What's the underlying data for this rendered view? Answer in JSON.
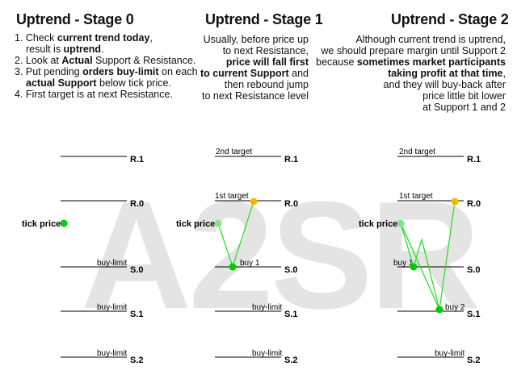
{
  "watermark": "A2SR",
  "stage0": {
    "title": "Uptrend - Stage 0",
    "steps": [
      [
        "1. Check ",
        "current trend today",
        ",",
        "result is ",
        "uptrend",
        "."
      ],
      [
        "2. Look at ",
        "Actual",
        " Support & Resistance."
      ],
      [
        "3. Put pending ",
        "orders buy-limit",
        " on each",
        "actual Support",
        " below tick price."
      ],
      [
        "4. First target is at next Resistance."
      ]
    ]
  },
  "stage1": {
    "title": "Uptrend - Stage 1",
    "l1": "Usually, before price up",
    "l2": "to next Resistance,",
    "l3": "price will fall first",
    "l4a": "to current Support",
    "l4b": " and",
    "l5": "then rebound jump",
    "l6": "to next Resistance level"
  },
  "stage2": {
    "title": "Uptrend  - Stage 2",
    "l1": "Although current trend is uptrend,",
    "l2": "we should prepare margin until Support 2",
    "l3a": "because ",
    "l3b": "sometimes market participants",
    "l4": "taking profit at that time",
    "l4c": ",",
    "l5": "and they will buy-back after",
    "l6": "price little bit lower",
    "l7": "at Support 1 and 2"
  },
  "levels": {
    "r1": "R.1",
    "r0": "R.0",
    "s0": "S.0",
    "s1": "S.1",
    "s2": "S.2"
  },
  "labels": {
    "tick_price": "tick price",
    "buy_limit": "buy-limit",
    "buy1": "buy 1",
    "buy2": "buy 2",
    "target1": "1st target",
    "target2": "2nd target"
  },
  "colors": {
    "tick": "#00cc00",
    "tick_light": "#7fe87f",
    "buy": "#00cc00",
    "target": "#f5b800",
    "path": "#22dd22",
    "line": "#000000"
  }
}
